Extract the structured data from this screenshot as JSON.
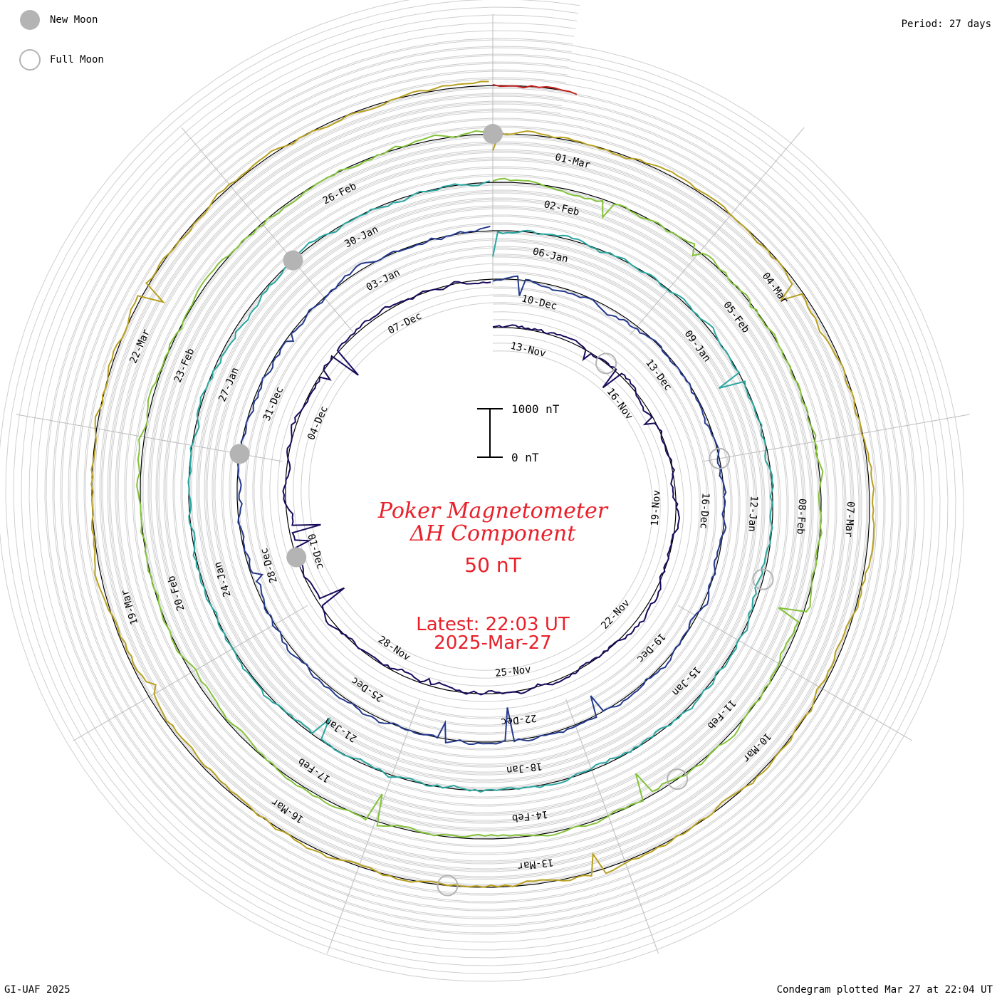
{
  "corner": {
    "period": "Period: 27 days",
    "credit": "GI-UAF 2025",
    "plotted": "Condegram plotted Mar 27 at 22:04 UT"
  },
  "legend": {
    "new_moon": "New Moon",
    "full_moon": "Full Moon",
    "new_moon_color": "#b4b4b4",
    "full_moon_color": "#b4b4b4"
  },
  "scale_bar": {
    "top_label": "1000 nT",
    "bottom_label": "0 nT"
  },
  "center": {
    "title1": "Poker Magnetometer",
    "title2": "ΔH Component",
    "scale": "50 nT",
    "latest": "Latest: 22:03 UT",
    "date": "2025-Mar-27",
    "text_color": "#e8202a"
  },
  "chart_data": {
    "type": "line",
    "start_date": "2024-Nov-12",
    "latest": "2025-Mar-27 22:03 UT",
    "period_days": 27,
    "series": [
      {
        "color": "#1a0a5c",
        "date_labels": [
          "13-Nov",
          "16-Nov",
          "19-Nov",
          "22-Nov",
          "25-Nov",
          "28-Nov",
          "01-Dec",
          "04-Dec",
          "07-Dec"
        ]
      },
      {
        "color": "#243a8c",
        "date_labels": [
          "10-Dec",
          "13-Dec",
          "16-Dec",
          "19-Dec",
          "22-Dec",
          "25-Dec",
          "28-Dec",
          "31-Dec",
          "03-Jan"
        ]
      },
      {
        "color": "#2aa6a0",
        "date_labels": [
          "06-Jan",
          "09-Jan",
          "12-Jan",
          "15-Jan",
          "18-Jan",
          "21-Jan",
          "24-Jan",
          "27-Jan",
          "30-Jan"
        ]
      },
      {
        "color": "#84c23a",
        "date_labels": [
          "02-Feb",
          "05-Feb",
          "08-Feb",
          "11-Feb",
          "14-Feb",
          "17-Feb",
          "20-Feb",
          "23-Feb",
          "26-Feb"
        ]
      },
      {
        "color": "#b8a020",
        "date_labels": [
          "01-Mar",
          "04-Mar",
          "07-Mar",
          "10-Mar",
          "13-Mar",
          "16-Mar",
          "19-Mar",
          "22-Mar"
        ]
      },
      {
        "color": "#c0201a",
        "date_labels": []
      }
    ],
    "new_moon_dates": [
      "2024-Dec-01",
      "2024-Dec-30",
      "2025-Jan-29",
      "2025-Feb-28"
    ],
    "full_moon_dates": [
      "2024-Nov-15",
      "2024-Dec-15",
      "2025-Jan-13",
      "2025-Feb-12",
      "2025-Mar-14"
    ]
  }
}
